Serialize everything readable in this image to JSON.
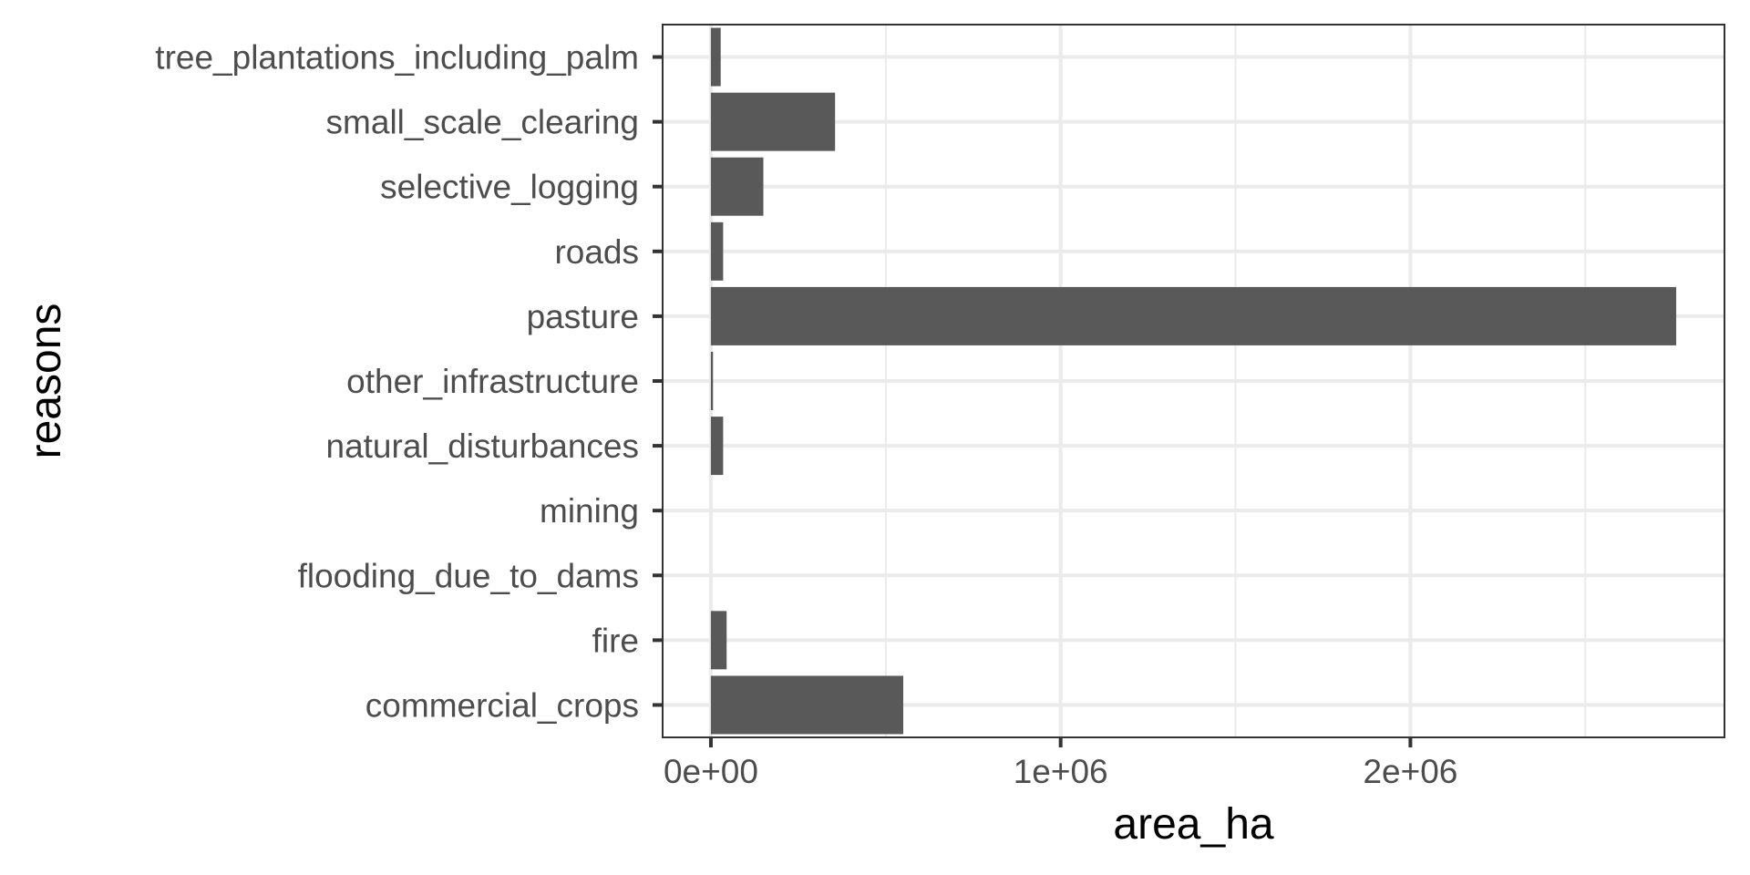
{
  "chart_data": {
    "type": "bar",
    "orientation": "horizontal",
    "xlabel": "area_ha",
    "ylabel": "reasons",
    "categories": [
      "commercial_crops",
      "fire",
      "flooding_due_to_dams",
      "mining",
      "natural_disturbances",
      "other_infrastructure",
      "pasture",
      "roads",
      "selective_logging",
      "small_scale_clearing",
      "tree_plantations_including_palm"
    ],
    "values": [
      550000,
      45000,
      0,
      0,
      35000,
      6000,
      2760000,
      35000,
      150000,
      355000,
      28000
    ],
    "x_ticks": [
      0,
      1000000,
      2000000
    ],
    "x_tick_labels": [
      "0e+00",
      "1e+06",
      "2e+06"
    ],
    "xlim": [
      -138000,
      2898000
    ],
    "grid": true,
    "bar_color": "#595959",
    "grid_color": "#ebebeb",
    "panel_border_color": "#333333"
  }
}
